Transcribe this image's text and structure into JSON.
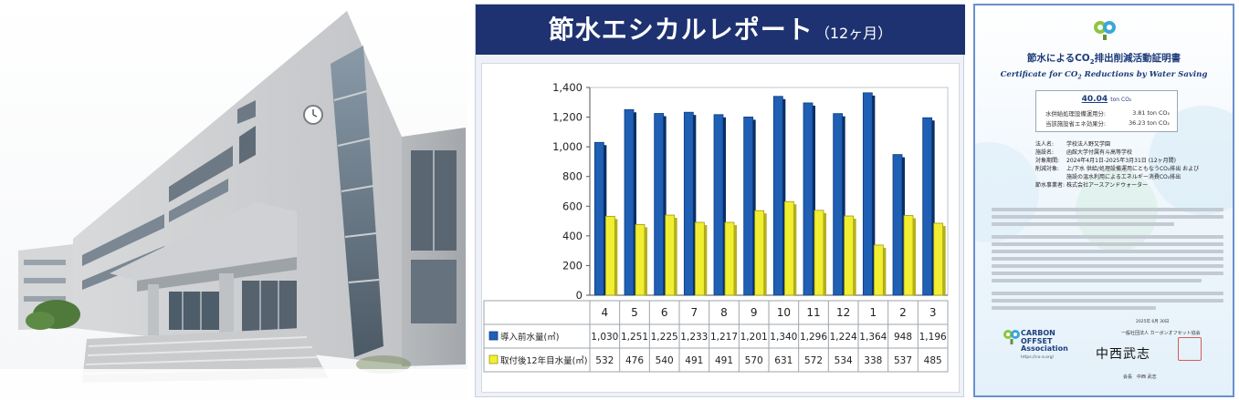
{
  "chart_panel": {
    "title": "節水エシカルレポート",
    "subtitle": "（12ヶ月）"
  },
  "chart_data": {
    "type": "bar",
    "categories": [
      "4",
      "5",
      "6",
      "7",
      "8",
      "9",
      "10",
      "11",
      "12",
      "1",
      "2",
      "3"
    ],
    "series": [
      {
        "name": "導入前水量(㎥)",
        "color": "#1f5fb4",
        "values": [
          1030,
          1251,
          1225,
          1233,
          1217,
          1201,
          1340,
          1296,
          1224,
          1364,
          948,
          1196
        ]
      },
      {
        "name": "取付後12年目水量(㎥)",
        "color": "#f2ef33",
        "values": [
          532,
          476,
          540,
          491,
          491,
          570,
          631,
          572,
          534,
          338,
          537,
          485
        ]
      }
    ],
    "ylim": [
      0,
      1400
    ],
    "yticks": [
      0,
      200,
      400,
      600,
      800,
      1000,
      1200,
      1400
    ],
    "ytick_labels": [
      "0",
      "200",
      "400",
      "600",
      "800",
      "1,000",
      "1,200",
      "1,400"
    ],
    "grid": false,
    "data_table": true
  },
  "certificate": {
    "title_jp_prefix": "節水によるCO",
    "title_jp_sub": "2",
    "title_jp_suffix": "排出削減活動証明書",
    "title_en_prefix": "Certificate for CO",
    "title_en_sub": "2",
    "title_en_suffix": " Reductions by Water Saving",
    "total_value": "40.04",
    "total_unit": "ton CO₂",
    "line1_label": "水供給処理設備運用分:",
    "line1_value": "3.81 ton CO₂",
    "line2_label": "当該施設省エネ効果分:",
    "line2_value": "36.23 ton CO₂",
    "info": [
      {
        "k": "法人名:",
        "v": "学校法人野又学園"
      },
      {
        "k": "施設名:",
        "v": "函館大学付属有斗高等学校"
      },
      {
        "k": "対象期間:",
        "v": "2024年4月1日-2025年3月31日 (12ヶ月間)"
      },
      {
        "k": "削減対象:",
        "v": "上/下水 供給/処理設備運用にともなうCO₂排出 および"
      },
      {
        "k": "",
        "v": "施設の温水利用によるエネルギー消費CO₂排出"
      },
      {
        "k": "節水事業者:",
        "v": "株式会社アースアンドウォーター"
      }
    ],
    "logo_line1": "CARBON",
    "logo_line2": "OFFSET",
    "logo_line3": "Association",
    "logo_url": "https://co-a.org/",
    "date": "2025年 6月 30日",
    "issuer": "一般社団法人 カーボンオフセット協会",
    "signature": "中西武志",
    "signer": "会長　中西 武志"
  }
}
